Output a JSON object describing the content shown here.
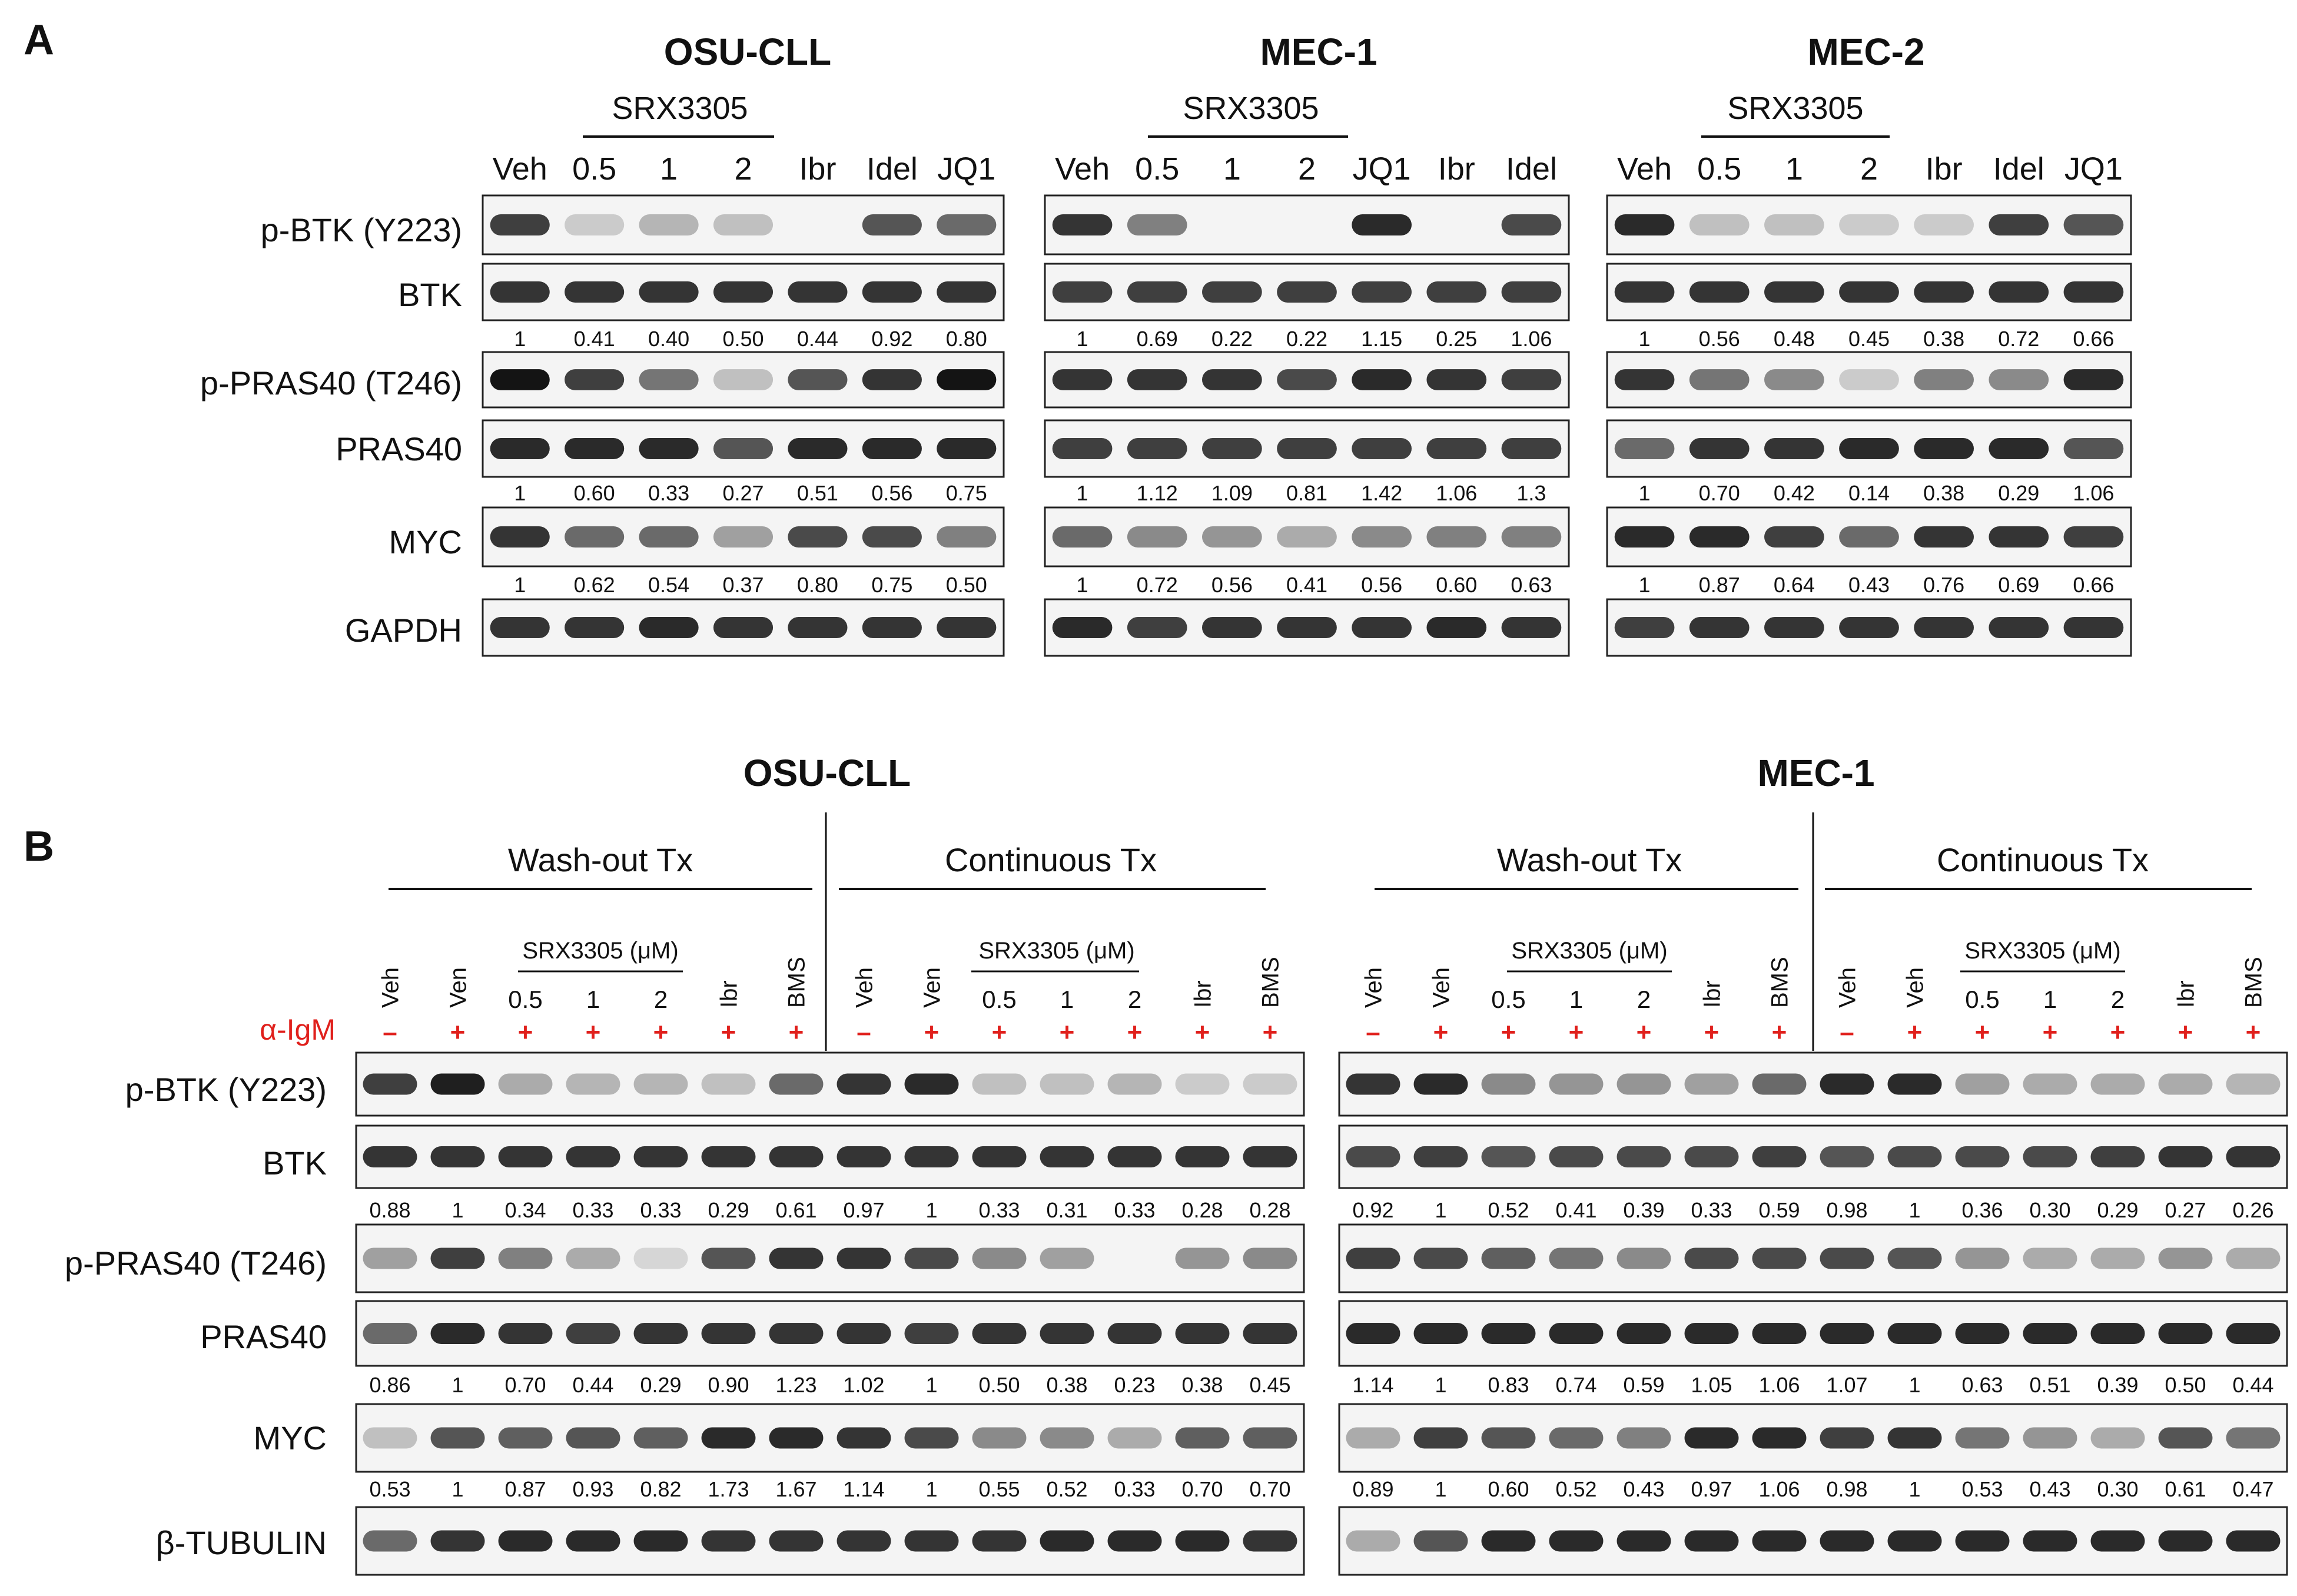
{
  "panel_a": {
    "letter": "A",
    "groups": [
      {
        "title": "OSU-CLL",
        "drug_label": "SRX3305",
        "lanes": [
          "Veh",
          "0.5",
          "1",
          "2",
          "Ibr",
          "Idel",
          "JQ1"
        ],
        "quant": [
          [
            "1",
            "0.41",
            "0.40",
            "0.50",
            "0.44",
            "0.92",
            "0.80"
          ],
          [
            "1",
            "0.60",
            "0.33",
            "0.27",
            "0.51",
            "0.56",
            "0.75"
          ],
          [
            "1",
            "0.62",
            "0.54",
            "0.37",
            "0.80",
            "0.75",
            "0.50"
          ]
        ]
      },
      {
        "title": "MEC-1",
        "drug_label": "SRX3305",
        "lanes": [
          "Veh",
          "0.5",
          "1",
          "2",
          "JQ1",
          "Ibr",
          "Idel"
        ],
        "quant": [
          [
            "1",
            "0.69",
            "0.22",
            "0.22",
            "1.15",
            "0.25",
            "1.06"
          ],
          [
            "1",
            "1.12",
            "1.09",
            "0.81",
            "1.42",
            "1.06",
            "1.3"
          ],
          [
            "1",
            "0.72",
            "0.56",
            "0.41",
            "0.56",
            "0.60",
            "0.63"
          ]
        ]
      },
      {
        "title": "MEC-2",
        "drug_label": "SRX3305",
        "lanes": [
          "Veh",
          "0.5",
          "1",
          "2",
          "Ibr",
          "Idel",
          "JQ1"
        ],
        "quant": [
          [
            "1",
            "0.56",
            "0.48",
            "0.45",
            "0.38",
            "0.72",
            "0.66"
          ],
          [
            "1",
            "0.70",
            "0.42",
            "0.14",
            "0.38",
            "0.29",
            "1.06"
          ],
          [
            "1",
            "0.87",
            "0.64",
            "0.43",
            "0.76",
            "0.69",
            "0.66"
          ]
        ]
      }
    ],
    "row_labels": [
      "p-BTK (Y223)",
      "BTK",
      "p-PRAS40 (T246)",
      "PRAS40",
      "MYC",
      "GAPDH"
    ]
  },
  "panel_b": {
    "letter": "B",
    "treatment_label": "α-IgM",
    "treatment_color": "#e0201c",
    "groups": [
      {
        "title": "OSU-CLL",
        "regimens": [
          "Wash-out Tx",
          "Continuous Tx"
        ],
        "drug_label": "SRX3305 (μM)",
        "lanes": [
          "Veh",
          "Ven",
          "0.5",
          "1",
          "2",
          "Ibr",
          "BMS",
          "Veh",
          "Ven",
          "0.5",
          "1",
          "2",
          "Ibr",
          "BMS"
        ],
        "igm": [
          "–",
          "+",
          "+",
          "+",
          "+",
          "+",
          "+",
          "–",
          "+",
          "+",
          "+",
          "+",
          "+",
          "+"
        ],
        "quant": [
          [
            "0.88",
            "1",
            "0.34",
            "0.33",
            "0.33",
            "0.29",
            "0.61",
            "0.97",
            "1",
            "0.33",
            "0.31",
            "0.33",
            "0.28",
            "0.28"
          ],
          [
            "0.86",
            "1",
            "0.70",
            "0.44",
            "0.29",
            "0.90",
            "1.23",
            "1.02",
            "1",
            "0.50",
            "0.38",
            "0.23",
            "0.38",
            "0.45"
          ],
          [
            "0.53",
            "1",
            "0.87",
            "0.93",
            "0.82",
            "1.73",
            "1.67",
            "1.14",
            "1",
            "0.55",
            "0.52",
            "0.33",
            "0.70",
            "0.70"
          ]
        ]
      },
      {
        "title": "MEC-1",
        "regimens": [
          "Wash-out Tx",
          "Continuous Tx"
        ],
        "drug_label": "SRX3305 (μM)",
        "lanes": [
          "Veh",
          "Veh",
          "0.5",
          "1",
          "2",
          "Ibr",
          "BMS",
          "Veh",
          "Veh",
          "0.5",
          "1",
          "2",
          "Ibr",
          "BMS"
        ],
        "igm": [
          "–",
          "+",
          "+",
          "+",
          "+",
          "+",
          "+",
          "–",
          "+",
          "+",
          "+",
          "+",
          "+",
          "+"
        ],
        "quant": [
          [
            "0.92",
            "1",
            "0.52",
            "0.41",
            "0.39",
            "0.33",
            "0.59",
            "0.98",
            "1",
            "0.36",
            "0.30",
            "0.29",
            "0.27",
            "0.26"
          ],
          [
            "1.14",
            "1",
            "0.83",
            "0.74",
            "0.59",
            "1.05",
            "1.06",
            "1.07",
            "1",
            "0.63",
            "0.51",
            "0.39",
            "0.50",
            "0.44"
          ],
          [
            "0.89",
            "1",
            "0.60",
            "0.52",
            "0.43",
            "0.97",
            "1.06",
            "0.98",
            "1",
            "0.53",
            "0.43",
            "0.30",
            "0.61",
            "0.47"
          ]
        ]
      }
    ],
    "row_labels": [
      "p-BTK (Y223)",
      "BTK",
      "p-PRAS40 (T246)",
      "PRAS40",
      "MYC",
      "β-TUBULIN"
    ]
  },
  "bands_a": [
    [
      [
        0.8,
        0.15,
        0.25,
        0.2,
        0,
        0.7,
        0.6
      ],
      [
        0.85,
        0.85,
        0.85,
        0.85,
        0.85,
        0.85,
        0.85
      ],
      [
        1,
        0.8,
        0.55,
        0.2,
        0.7,
        0.85,
        1
      ],
      [
        0.9,
        0.9,
        0.9,
        0.7,
        0.9,
        0.9,
        0.9
      ],
      [
        0.85,
        0.6,
        0.6,
        0.35,
        0.75,
        0.75,
        0.5
      ],
      [
        0.85,
        0.85,
        0.9,
        0.85,
        0.85,
        0.85,
        0.85
      ]
    ],
    [
      [
        0.85,
        0.5,
        0,
        0,
        0.9,
        0,
        0.75
      ],
      [
        0.8,
        0.8,
        0.8,
        0.8,
        0.8,
        0.8,
        0.8
      ],
      [
        0.85,
        0.85,
        0.85,
        0.75,
        0.9,
        0.85,
        0.8
      ],
      [
        0.8,
        0.8,
        0.8,
        0.8,
        0.8,
        0.8,
        0.8
      ],
      [
        0.6,
        0.45,
        0.4,
        0.3,
        0.45,
        0.5,
        0.5
      ],
      [
        0.9,
        0.8,
        0.85,
        0.85,
        0.85,
        0.9,
        0.85
      ]
    ],
    [
      [
        0.9,
        0.2,
        0.2,
        0.15,
        0.15,
        0.8,
        0.7
      ],
      [
        0.85,
        0.85,
        0.85,
        0.85,
        0.85,
        0.85,
        0.85
      ],
      [
        0.85,
        0.55,
        0.45,
        0.15,
        0.5,
        0.45,
        0.9
      ],
      [
        0.6,
        0.85,
        0.85,
        0.9,
        0.9,
        0.9,
        0.7
      ],
      [
        0.9,
        0.9,
        0.8,
        0.6,
        0.85,
        0.85,
        0.8
      ],
      [
        0.8,
        0.85,
        0.85,
        0.85,
        0.85,
        0.85,
        0.85
      ]
    ]
  ],
  "bands_b": [
    [
      [
        0.8,
        0.95,
        0.3,
        0.25,
        0.25,
        0.2,
        0.6,
        0.85,
        0.9,
        0.2,
        0.2,
        0.25,
        0.15,
        0.15
      ],
      [
        0.85,
        0.85,
        0.85,
        0.85,
        0.85,
        0.85,
        0.85,
        0.85,
        0.85,
        0.85,
        0.85,
        0.85,
        0.85,
        0.85
      ],
      [
        0.35,
        0.8,
        0.5,
        0.3,
        0.1,
        0.7,
        0.85,
        0.85,
        0.75,
        0.45,
        0.35,
        0,
        0.4,
        0.45
      ],
      [
        0.6,
        0.9,
        0.85,
        0.8,
        0.85,
        0.85,
        0.85,
        0.85,
        0.8,
        0.85,
        0.85,
        0.85,
        0.85,
        0.85
      ],
      [
        0.2,
        0.7,
        0.65,
        0.7,
        0.65,
        0.9,
        0.9,
        0.85,
        0.75,
        0.45,
        0.45,
        0.3,
        0.65,
        0.65
      ],
      [
        0.6,
        0.85,
        0.9,
        0.9,
        0.9,
        0.85,
        0.85,
        0.85,
        0.85,
        0.85,
        0.9,
        0.9,
        0.9,
        0.85
      ]
    ],
    [
      [
        0.85,
        0.9,
        0.45,
        0.4,
        0.4,
        0.35,
        0.6,
        0.9,
        0.9,
        0.35,
        0.3,
        0.3,
        0.3,
        0.25
      ],
      [
        0.75,
        0.8,
        0.7,
        0.75,
        0.75,
        0.75,
        0.8,
        0.7,
        0.75,
        0.75,
        0.75,
        0.8,
        0.85,
        0.85
      ],
      [
        0.8,
        0.75,
        0.65,
        0.55,
        0.45,
        0.75,
        0.75,
        0.75,
        0.7,
        0.4,
        0.3,
        0.3,
        0.4,
        0.3
      ],
      [
        0.9,
        0.9,
        0.9,
        0.9,
        0.9,
        0.9,
        0.9,
        0.9,
        0.9,
        0.9,
        0.9,
        0.9,
        0.9,
        0.9
      ],
      [
        0.3,
        0.8,
        0.7,
        0.6,
        0.5,
        0.9,
        0.9,
        0.8,
        0.85,
        0.55,
        0.4,
        0.3,
        0.7,
        0.55
      ],
      [
        0.3,
        0.7,
        0.9,
        0.9,
        0.9,
        0.9,
        0.9,
        0.9,
        0.9,
        0.9,
        0.9,
        0.9,
        0.9,
        0.9
      ]
    ]
  ]
}
